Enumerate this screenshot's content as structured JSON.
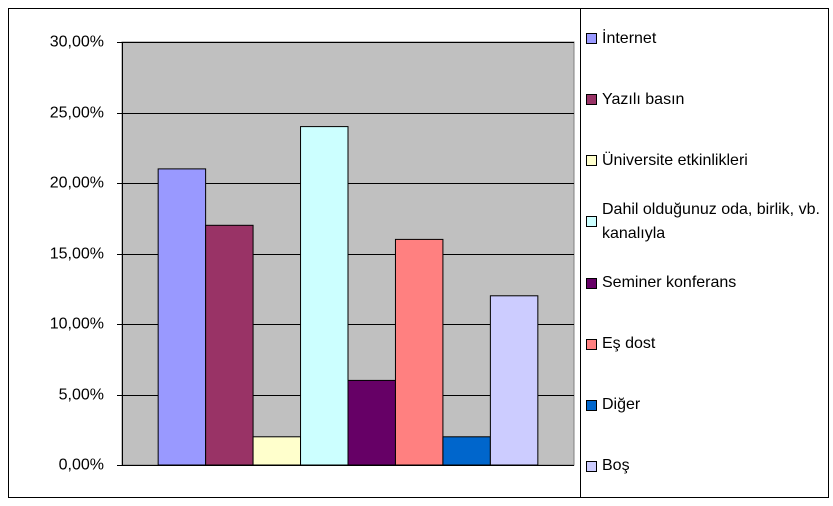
{
  "chart_data": {
    "type": "bar",
    "categories": [
      null
    ],
    "series": [
      {
        "name": "İnternet",
        "color": "#9999ff",
        "values": [
          21
        ]
      },
      {
        "name": "Yazılı basın",
        "color": "#993366",
        "values": [
          17
        ]
      },
      {
        "name": "Üniversite etkinlikleri",
        "color": "#ffffcc",
        "values": [
          2
        ]
      },
      {
        "name": "Dahil olduğunuz oda, birlik, vb. kanalıyla",
        "color": "#ccffff",
        "values": [
          24
        ]
      },
      {
        "name": "Seminer konferans",
        "color": "#660066",
        "values": [
          6
        ]
      },
      {
        "name": "Eş dost",
        "color": "#ff8080",
        "values": [
          16
        ]
      },
      {
        "name": "Diğer",
        "color": "#0066cc",
        "values": [
          2
        ]
      },
      {
        "name": "Boş",
        "color": "#ccccff",
        "values": [
          12
        ]
      }
    ],
    "ylim": [
      0,
      30
    ],
    "yticks": [
      {
        "value": 0,
        "label": "0,00%"
      },
      {
        "value": 5,
        "label": "5,00%"
      },
      {
        "value": 10,
        "label": "10,00%"
      },
      {
        "value": 15,
        "label": "15,00%"
      },
      {
        "value": 20,
        "label": "20,00%"
      },
      {
        "value": 25,
        "label": "25,00%"
      },
      {
        "value": 30,
        "label": "30,00%"
      }
    ],
    "grid": true,
    "plot_background": "#c0c0c0",
    "legend": "right"
  }
}
